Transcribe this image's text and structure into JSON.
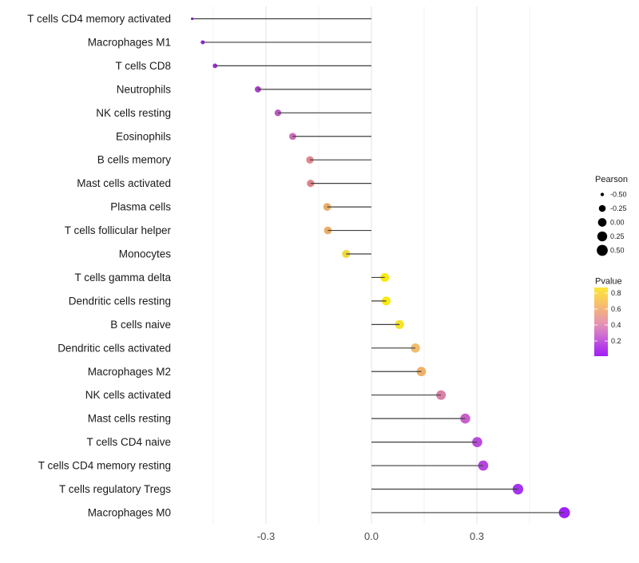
{
  "chart_data": {
    "type": "scatter",
    "subtype": "lollipop",
    "title": "",
    "xlabel": "",
    "ylabel": "",
    "x_axis": {
      "tick_values": [
        -0.3,
        0.0,
        0.3
      ],
      "tick_labels": [
        "-0.3",
        "0.0",
        "0.3"
      ],
      "xlim": [
        -0.565,
        0.6
      ]
    },
    "grid": {
      "major": [
        -0.3,
        0.0,
        0.3
      ],
      "minor": [
        -0.45,
        -0.15,
        0.15,
        0.45
      ],
      "major_color": "#e3e3e3",
      "minor_color": "#f1f1f1"
    },
    "points": [
      {
        "label": "T cells CD4 memory activated",
        "pearson": -0.51,
        "color": "#8a1bd0"
      },
      {
        "label": "Macrophages M1",
        "pearson": -0.48,
        "color": "#9527da"
      },
      {
        "label": "T cells CD8",
        "pearson": -0.445,
        "color": "#9b30d4"
      },
      {
        "label": "Neutrophils",
        "pearson": -0.323,
        "color": "#a83fc9"
      },
      {
        "label": "NK cells resting",
        "pearson": -0.266,
        "color": "#b95ac0"
      },
      {
        "label": "Eosinophils",
        "pearson": -0.224,
        "color": "#cb6db2"
      },
      {
        "label": "B cells memory",
        "pearson": -0.175,
        "color": "#df878b"
      },
      {
        "label": "Mast cells activated",
        "pearson": -0.173,
        "color": "#de8489"
      },
      {
        "label": "Plasma cells",
        "pearson": -0.126,
        "color": "#ecac64"
      },
      {
        "label": "T cells follicular helper",
        "pearson": -0.124,
        "color": "#ecac64"
      },
      {
        "label": "Monocytes",
        "pearson": -0.072,
        "color": "#f0d93e"
      },
      {
        "label": "T cells gamma delta",
        "pearson": 0.038,
        "color": "#fae90e"
      },
      {
        "label": "Dendritic cells resting",
        "pearson": 0.042,
        "color": "#fae90e"
      },
      {
        "label": "B cells naive",
        "pearson": 0.08,
        "color": "#f6e229"
      },
      {
        "label": "Dendritic cells activated",
        "pearson": 0.125,
        "color": "#f2bc6e"
      },
      {
        "label": "Macrophages M2",
        "pearson": 0.142,
        "color": "#efb067"
      },
      {
        "label": "NK cells activated",
        "pearson": 0.198,
        "color": "#db80a7"
      },
      {
        "label": "Mast cells resting",
        "pearson": 0.267,
        "color": "#c75fca"
      },
      {
        "label": "T cells CD4 naive",
        "pearson": 0.301,
        "color": "#b94cda"
      },
      {
        "label": "T cells CD4 memory resting",
        "pearson": 0.318,
        "color": "#b445de"
      },
      {
        "label": "T cells regulatory  Tregs",
        "pearson": 0.417,
        "color": "#a534ee"
      },
      {
        "label": "Macrophages M0",
        "pearson": 0.549,
        "color": "#9c22f4"
      }
    ],
    "legends": {
      "size": {
        "title": "Pearson",
        "values": [
          -0.5,
          -0.25,
          0.0,
          0.25,
          0.5
        ],
        "labels": [
          "-0.50",
          "-0.25",
          "0.00",
          "0.25",
          "0.50"
        ],
        "dot_color": "#000000",
        "domain": [
          -0.51,
          0.551
        ],
        "radius_range": [
          1.6,
          7.0
        ]
      },
      "color": {
        "title": "Pvalue",
        "tick_values": [
          0.8,
          0.6,
          0.4,
          0.2
        ],
        "tick_labels": [
          "0.8",
          "0.6",
          "0.4",
          "0.2"
        ],
        "bar_domain_top_to_bottom": [
          0.87,
          0.01
        ],
        "gradient_top_to_bottom": [
          {
            "offset": 0.0,
            "color": "#fce636"
          },
          {
            "offset": 0.18,
            "color": "#f8cb5c"
          },
          {
            "offset": 0.38,
            "color": "#efa98c"
          },
          {
            "offset": 0.52,
            "color": "#e694b2"
          },
          {
            "offset": 0.68,
            "color": "#d172ce"
          },
          {
            "offset": 0.84,
            "color": "#b744e5"
          },
          {
            "offset": 1.0,
            "color": "#a21df5"
          }
        ]
      }
    },
    "stem_color": "#3f3f3f",
    "y_label_color": "#1a1a1a",
    "x_tick_color": "#4d4d4d",
    "legend_text_color": "#1a1a1a",
    "background_color": "#ffffff"
  }
}
